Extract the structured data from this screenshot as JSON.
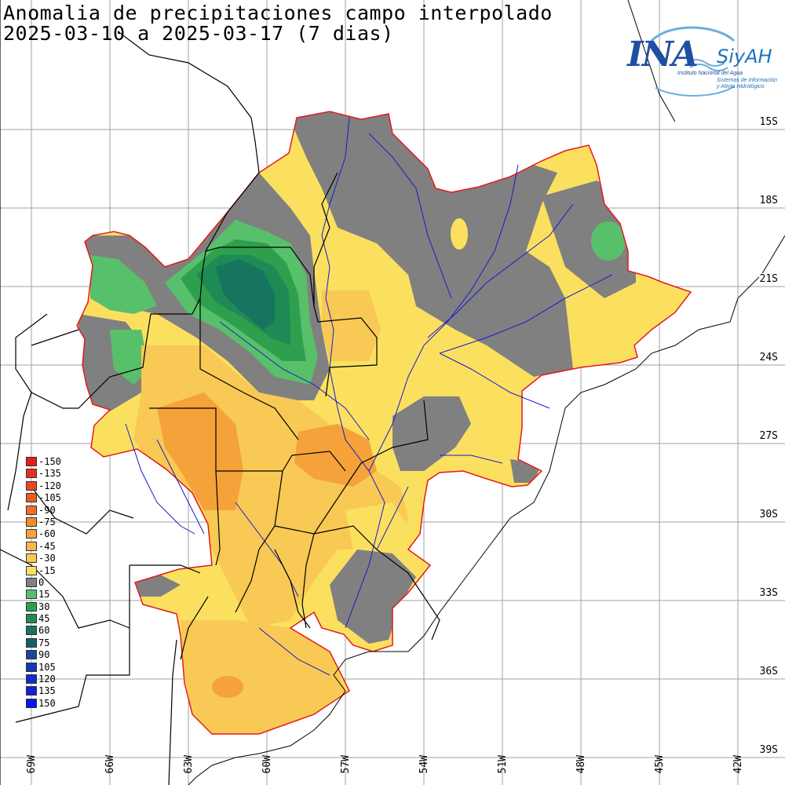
{
  "title_line1": "Anomalia de precipitaciones campo interpolado",
  "title_line2": "2025-03-10 a 2025-03-17 (7 dias)",
  "logo": {
    "name": "INA",
    "siyah": "SiyAH",
    "subtitle": "Instituto Nacional del Agua",
    "subtitle2_line1": "Sistemas de Información",
    "subtitle2_line2": "y Alerta Hidrológico"
  },
  "latitude_labels": [
    "15S",
    "18S",
    "21S",
    "24S",
    "27S",
    "30S",
    "33S",
    "36S",
    "39S"
  ],
  "longitude_labels": [
    "69W",
    "66W",
    "63W",
    "60W",
    "57W",
    "54W",
    "51W",
    "48W",
    "45W",
    "42W"
  ],
  "legend": [
    {
      "label": "-150",
      "color": "#e41a1c"
    },
    {
      "label": "-135",
      "color": "#ea2e1e"
    },
    {
      "label": "-120",
      "color": "#ee4420"
    },
    {
      "label": "-105",
      "color": "#f05a22"
    },
    {
      "label": "-90",
      "color": "#f26f24"
    },
    {
      "label": "-75",
      "color": "#f38a2c"
    },
    {
      "label": "-60",
      "color": "#f5a23a"
    },
    {
      "label": "-45",
      "color": "#f7b847"
    },
    {
      "label": "-30",
      "color": "#f8c954"
    },
    {
      "label": "-15",
      "color": "#fbe060"
    },
    {
      "label": "0",
      "color": "#808080"
    },
    {
      "label": "15",
      "color": "#58c06a"
    },
    {
      "label": "30",
      "color": "#2ea04d"
    },
    {
      "label": "45",
      "color": "#1e8a55"
    },
    {
      "label": "60",
      "color": "#17745e"
    },
    {
      "label": "75",
      "color": "#155f6b"
    },
    {
      "label": "90",
      "color": "#1646a0"
    },
    {
      "label": "105",
      "color": "#1438b8"
    },
    {
      "label": "120",
      "color": "#122ccc"
    },
    {
      "label": "135",
      "color": "#1020dd"
    },
    {
      "label": "150",
      "color": "#0b14ee"
    }
  ],
  "colors": {
    "basin_outline": "#e41a1c",
    "rivers": "#1a1acc",
    "borders": "#000000",
    "grid": "#a0a0a0"
  }
}
